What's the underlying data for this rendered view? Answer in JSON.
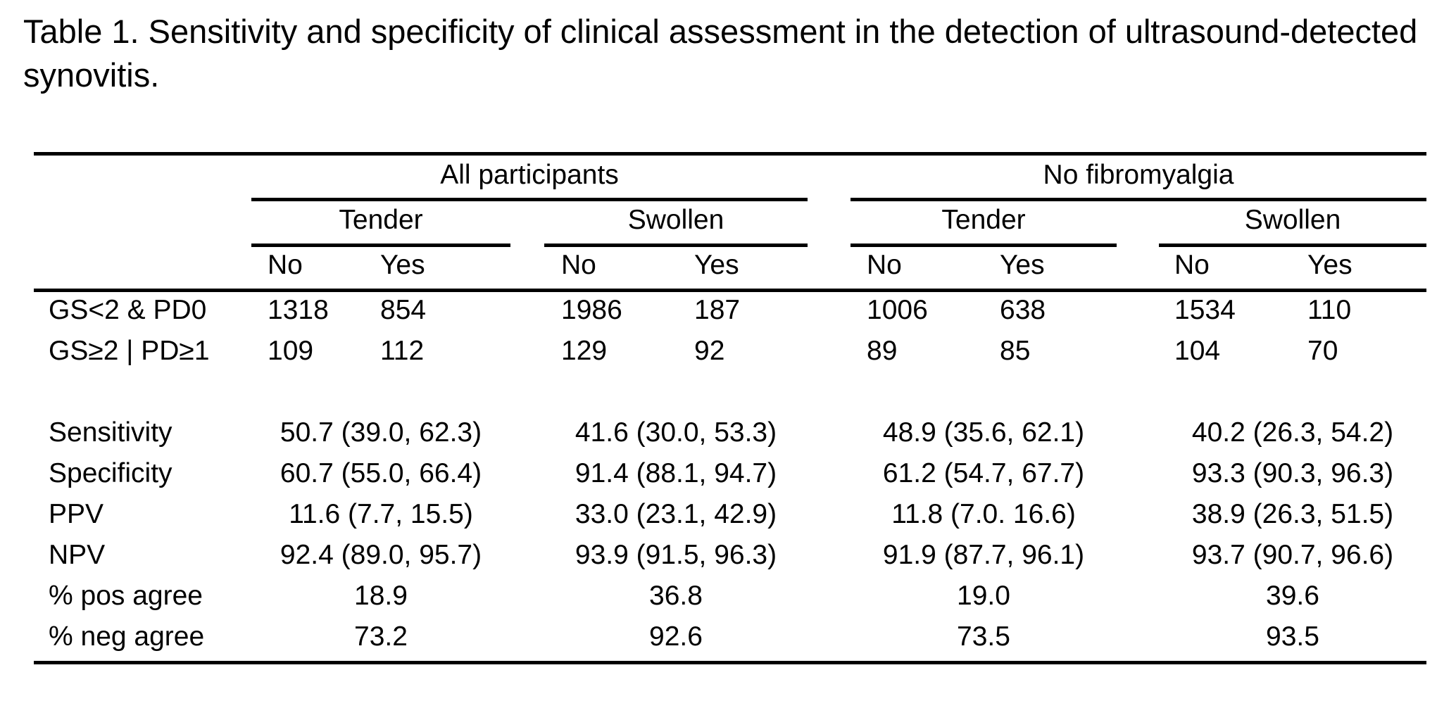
{
  "caption": "Table 1. Sensitivity and specificity of clinical assessment in the detection of ultrasound-detected synovitis.",
  "table": {
    "groups": [
      {
        "label": "All participants",
        "subgroups": [
          {
            "label": "Tender",
            "no": "No",
            "yes": "Yes"
          },
          {
            "label": "Swollen",
            "no": "No",
            "yes": "Yes"
          }
        ]
      },
      {
        "label": "No fibromyalgia",
        "subgroups": [
          {
            "label": "Tender",
            "no": "No",
            "yes": "Yes"
          },
          {
            "label": "Swollen",
            "no": "No",
            "yes": "Yes"
          }
        ]
      }
    ],
    "count_rows": [
      {
        "label": "GS<2 & PD0",
        "values": [
          "1318",
          "854",
          "1986",
          "187",
          "1006",
          "638",
          "1534",
          "110"
        ]
      },
      {
        "label": "GS≥2 | PD≥1",
        "values": [
          "109",
          "112",
          "129",
          "92",
          "89",
          "85",
          "104",
          "70"
        ]
      }
    ],
    "stat_rows": [
      {
        "label": "Sensitivity",
        "values": [
          "50.7 (39.0, 62.3)",
          "41.6 (30.0, 53.3)",
          "48.9 (35.6, 62.1)",
          "40.2 (26.3, 54.2)"
        ]
      },
      {
        "label": "Specificity",
        "values": [
          "60.7 (55.0, 66.4)",
          "91.4 (88.1, 94.7)",
          "61.2 (54.7, 67.7)",
          "93.3 (90.3, 96.3)"
        ]
      },
      {
        "label": "PPV",
        "values": [
          "11.6 (7.7, 15.5)",
          "33.0 (23.1, 42.9)",
          "11.8 (7.0. 16.6)",
          "38.9 (26.3, 51.5)"
        ]
      },
      {
        "label": "NPV",
        "values": [
          "92.4 (89.0, 95.7)",
          "93.9 (91.5, 96.3)",
          "91.9 (87.7, 96.1)",
          "93.7 (90.7, 96.6)"
        ]
      },
      {
        "label": "% pos agree",
        "values": [
          "18.9",
          "36.8",
          "19.0",
          "39.6"
        ]
      },
      {
        "label": "% neg agree",
        "values": [
          "73.2",
          "92.6",
          "73.5",
          "93.5"
        ]
      }
    ]
  }
}
